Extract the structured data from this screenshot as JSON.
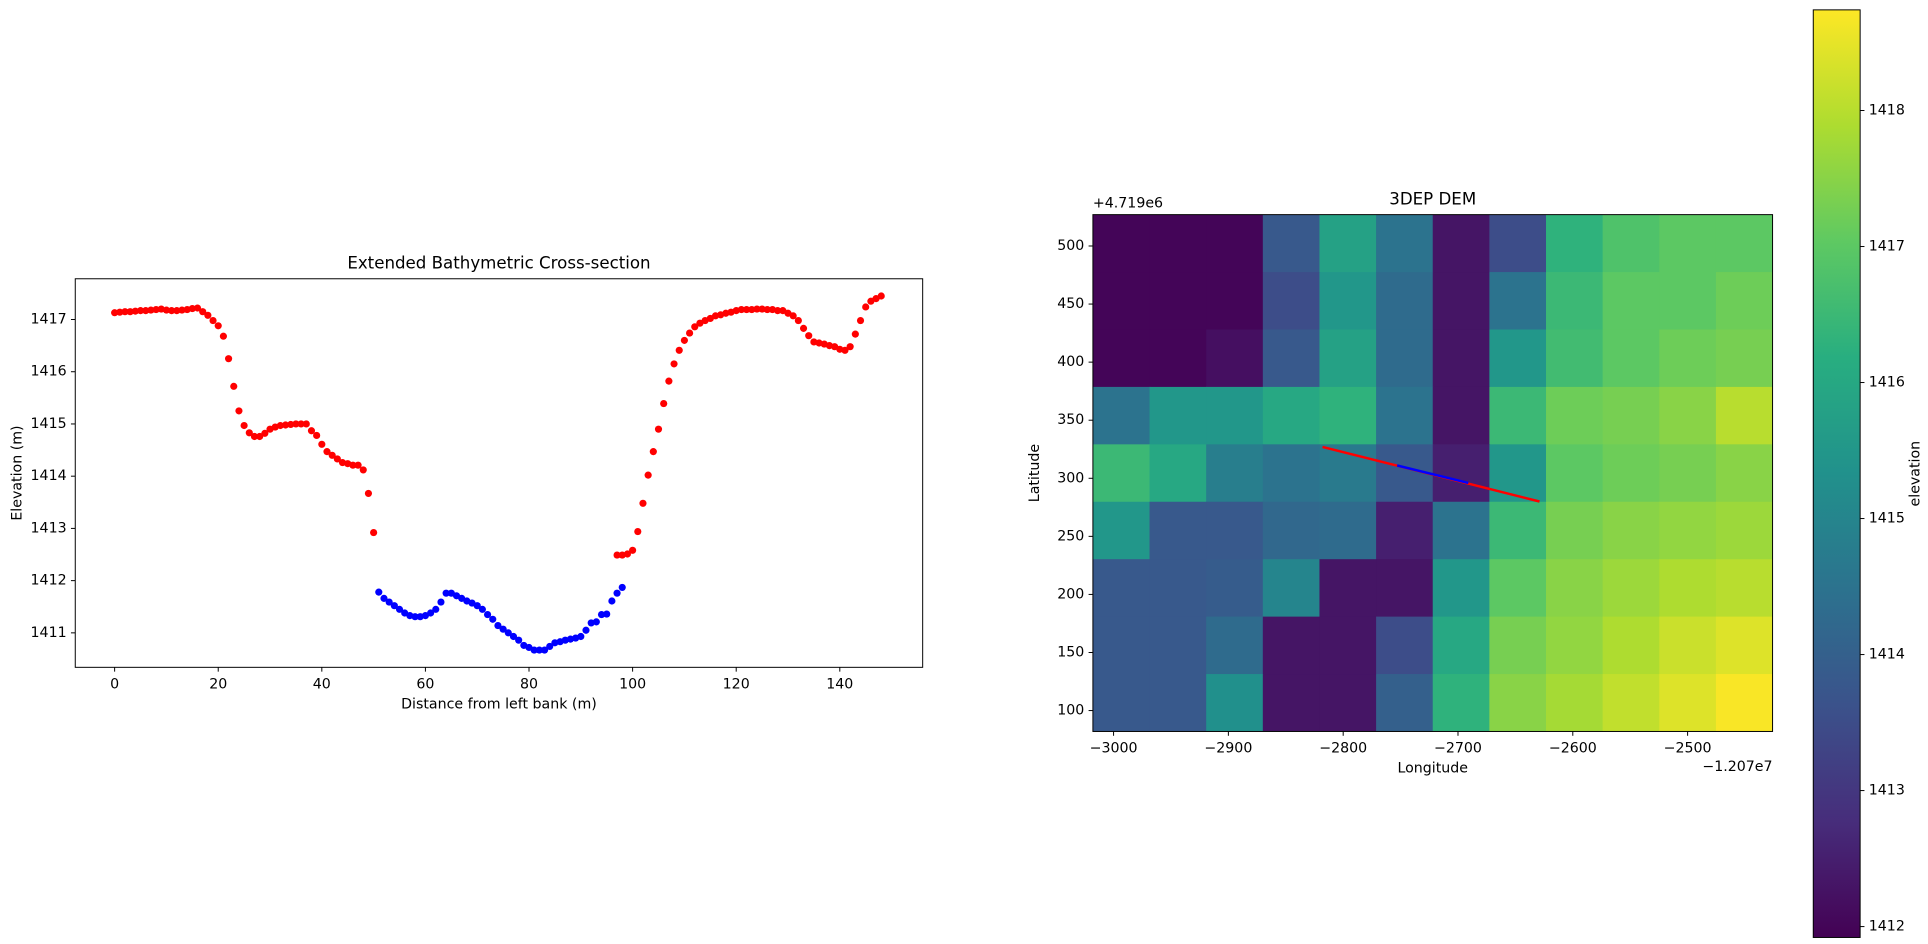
{
  "chart_data": [
    {
      "type": "scatter",
      "title": "Extended Bathymetric Cross-section",
      "xlabel": "Distance from left bank (m)",
      "ylabel": "Elevation (m)",
      "xlim": [
        -7.6,
        156
      ],
      "ylim": [
        1410.34,
        1417.78
      ],
      "xticks": [
        0,
        20,
        40,
        60,
        80,
        100,
        120,
        140
      ],
      "yticks": [
        1411,
        1412,
        1413,
        1414,
        1415,
        1416,
        1417
      ],
      "series": [
        {
          "color": "red",
          "x": [
            0,
            1,
            2,
            3,
            4,
            5,
            6,
            7,
            8,
            9,
            10,
            11,
            12,
            13,
            14,
            15,
            16,
            17,
            18,
            19,
            20,
            21,
            22,
            23,
            24,
            25,
            26,
            27,
            28,
            29,
            30,
            31,
            32,
            33,
            34,
            35,
            36,
            37,
            38,
            39,
            40,
            41,
            42,
            43,
            44,
            45,
            46,
            47,
            48,
            49,
            50
          ],
          "values": [
            1417.13,
            1417.14,
            1417.15,
            1417.15,
            1417.16,
            1417.17,
            1417.17,
            1417.18,
            1417.19,
            1417.2,
            1417.18,
            1417.17,
            1417.17,
            1417.18,
            1417.19,
            1417.21,
            1417.22,
            1417.15,
            1417.08,
            1416.98,
            1416.88,
            1416.68,
            1416.25,
            1415.72,
            1415.25,
            1414.97,
            1414.83,
            1414.76,
            1414.76,
            1414.82,
            1414.9,
            1414.94,
            1414.97,
            1414.98,
            1414.99,
            1415.0,
            1415.0,
            1415.0,
            1414.87,
            1414.78,
            1414.61,
            1414.47,
            1414.4,
            1414.33,
            1414.26,
            1414.24,
            1414.21,
            1414.21,
            1414.12,
            1413.67,
            1412.92
          ]
        },
        {
          "color": "blue",
          "x": [
            51,
            52,
            53,
            54,
            55,
            56,
            57,
            58,
            59,
            60,
            61,
            62,
            63,
            64,
            65,
            66,
            67,
            68,
            69,
            70,
            71,
            72,
            73,
            74,
            75,
            76,
            77,
            78,
            79,
            80,
            81,
            82,
            83,
            84,
            85,
            86,
            87,
            88,
            89,
            90,
            91,
            92,
            93,
            94,
            95,
            96,
            97,
            98
          ],
          "values": [
            1411.78,
            1411.66,
            1411.59,
            1411.52,
            1411.45,
            1411.38,
            1411.33,
            1411.31,
            1411.31,
            1411.33,
            1411.38,
            1411.45,
            1411.59,
            1411.76,
            1411.76,
            1411.71,
            1411.66,
            1411.61,
            1411.57,
            1411.52,
            1411.45,
            1411.35,
            1411.26,
            1411.14,
            1411.07,
            1411.0,
            1410.93,
            1410.86,
            1410.76,
            1410.72,
            1410.67,
            1410.67,
            1410.67,
            1410.74,
            1410.81,
            1410.83,
            1410.86,
            1410.88,
            1410.9,
            1410.93,
            1411.05,
            1411.19,
            1411.21,
            1411.35,
            1411.36,
            1411.61,
            1411.76,
            1411.87
          ]
        },
        {
          "color": "red",
          "x": [
            97,
            98,
            99,
            100,
            101,
            102,
            103,
            104,
            105,
            106,
            107,
            108,
            109,
            110,
            111,
            112,
            113,
            114,
            115,
            116,
            117,
            118,
            119,
            120,
            121,
            122,
            123,
            124,
            125,
            126,
            127,
            128,
            129,
            130,
            131,
            132,
            133,
            134,
            135,
            136,
            137,
            138,
            139,
            140,
            141,
            142,
            143,
            144,
            145,
            146,
            147,
            148
          ],
          "values": [
            1412.49,
            1412.49,
            1412.51,
            1412.58,
            1412.94,
            1413.48,
            1414.02,
            1414.47,
            1414.9,
            1415.39,
            1415.82,
            1416.15,
            1416.41,
            1416.6,
            1416.74,
            1416.86,
            1416.93,
            1416.98,
            1417.02,
            1417.07,
            1417.09,
            1417.12,
            1417.14,
            1417.17,
            1417.19,
            1417.19,
            1417.19,
            1417.2,
            1417.2,
            1417.19,
            1417.19,
            1417.17,
            1417.17,
            1417.12,
            1417.07,
            1416.98,
            1416.83,
            1416.69,
            1416.57,
            1416.55,
            1416.53,
            1416.5,
            1416.48,
            1416.43,
            1416.41,
            1416.48,
            1416.72,
            1416.98,
            1417.24,
            1417.35,
            1417.4,
            1417.45
          ]
        }
      ]
    },
    {
      "type": "heatmap",
      "title": "3DEP DEM",
      "xlabel": "Longitude",
      "ylabel": "Latitude",
      "x_offset_label": "−1.207e7",
      "y_offset_label": "+4.719e6",
      "xlim": [
        -3018,
        -2426
      ],
      "ylim": [
        82,
        527
      ],
      "xticks": [
        {
          "value": -3000,
          "label": "−3000"
        },
        {
          "value": -2900,
          "label": "−2900"
        },
        {
          "value": -2800,
          "label": "−2800"
        },
        {
          "value": -2700,
          "label": "−2700"
        },
        {
          "value": -2600,
          "label": "−2600"
        },
        {
          "value": -2500,
          "label": "−2500"
        }
      ],
      "yticks": [
        100,
        150,
        200,
        250,
        300,
        350,
        400,
        450,
        500
      ],
      "cmap": "viridis",
      "clim": [
        1411.92,
        1418.74
      ],
      "colorbar_label": "elevation",
      "colorbar_ticks": [
        1412,
        1413,
        1414,
        1415,
        1416,
        1417,
        1418
      ],
      "z": [
        [
          1412.0,
          1412.0,
          1412.0,
          1413.8,
          1415.8,
          1414.5,
          1412.3,
          1413.5,
          1416.3,
          1416.8,
          1417.0,
          1417.0
        ],
        [
          1412.0,
          1412.0,
          1412.0,
          1413.5,
          1415.5,
          1414.3,
          1412.3,
          1414.5,
          1416.5,
          1417.0,
          1417.0,
          1417.2
        ],
        [
          1412.0,
          1412.0,
          1412.2,
          1413.8,
          1415.8,
          1414.3,
          1412.3,
          1415.5,
          1416.6,
          1417.0,
          1417.2,
          1417.3
        ],
        [
          1414.5,
          1415.5,
          1415.5,
          1416.0,
          1416.3,
          1414.5,
          1412.3,
          1416.5,
          1417.2,
          1417.3,
          1417.5,
          1418.0
        ],
        [
          1416.5,
          1416.0,
          1414.8,
          1414.5,
          1414.7,
          1413.8,
          1412.5,
          1415.5,
          1417.0,
          1417.2,
          1417.3,
          1417.5
        ],
        [
          1415.5,
          1413.8,
          1413.8,
          1414.2,
          1414.3,
          1412.5,
          1414.5,
          1416.5,
          1417.3,
          1417.5,
          1417.6,
          1417.7
        ],
        [
          1413.8,
          1413.8,
          1413.9,
          1415.0,
          1412.3,
          1412.3,
          1415.5,
          1417.0,
          1417.5,
          1417.7,
          1417.9,
          1418.0
        ],
        [
          1413.8,
          1413.8,
          1414.3,
          1412.3,
          1412.3,
          1413.5,
          1416.0,
          1417.3,
          1417.6,
          1417.9,
          1418.2,
          1418.4
        ],
        [
          1413.8,
          1413.8,
          1415.3,
          1412.3,
          1412.3,
          1414.0,
          1416.3,
          1417.5,
          1417.8,
          1418.1,
          1418.4,
          1418.7
        ]
      ],
      "lines": [
        {
          "color": "red",
          "x": [
            -2818,
            -2629
          ],
          "values": [
            327,
            280
          ]
        },
        {
          "color": "blue",
          "x": [
            -2753,
            -2691
          ],
          "values": [
            311,
            296
          ]
        }
      ]
    }
  ]
}
